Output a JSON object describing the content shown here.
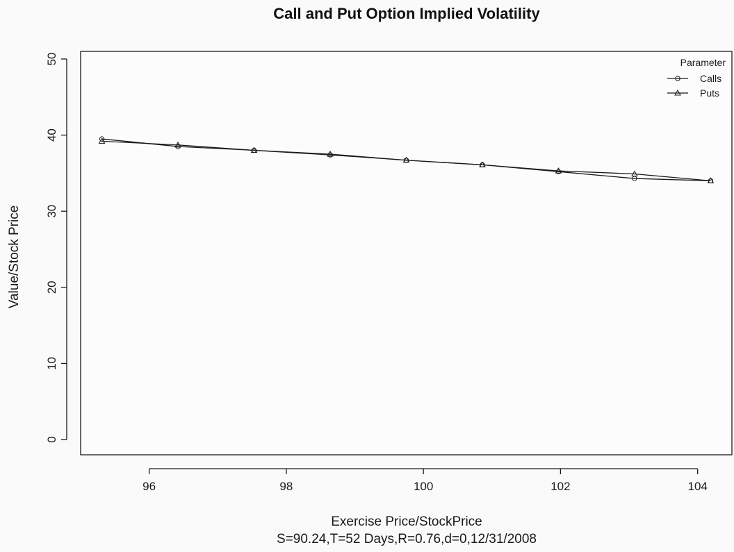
{
  "chart_data": {
    "type": "line",
    "title": "Call and Put Option Implied Volatility",
    "xlabel": "Exercise Price/StockPrice",
    "subtitle": "S=90.24,T=52 Days,R=0.76,d=0,12/31/2008",
    "ylabel": "Value/Stock Price",
    "xlim": [
      95.0,
      104.5
    ],
    "ylim": [
      -2,
      51
    ],
    "xticks": [
      96,
      98,
      100,
      102,
      104
    ],
    "yticks": [
      0,
      10,
      20,
      30,
      40,
      50
    ],
    "x": [
      95.31,
      96.42,
      97.53,
      98.64,
      99.75,
      100.86,
      101.97,
      103.08,
      104.19
    ],
    "series": [
      {
        "name": "Calls",
        "marker": "circle",
        "values": [
          39.5,
          38.5,
          38.0,
          37.4,
          36.7,
          36.1,
          35.2,
          34.3,
          34.0
        ]
      },
      {
        "name": "Puts",
        "marker": "triangle",
        "values": [
          39.2,
          38.7,
          38.0,
          37.5,
          36.7,
          36.1,
          35.3,
          34.9,
          34.0
        ]
      }
    ],
    "legend": {
      "title": "Parameter",
      "position": "top-right"
    },
    "grid": false
  },
  "colors": {
    "background": "#fafafa",
    "plot_background": "#fcfcfc",
    "ink": "#1a1a1a"
  }
}
